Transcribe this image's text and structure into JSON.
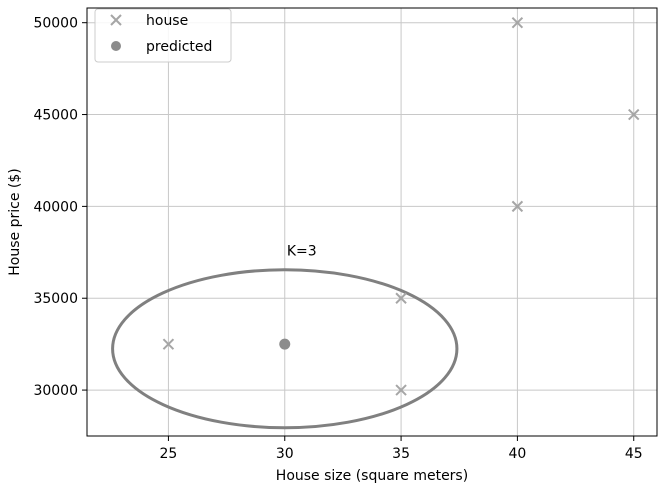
{
  "chart_data": {
    "type": "scatter",
    "title": "",
    "xlabel": "House size (square meters)",
    "ylabel": "House price ($)",
    "xlim": [
      21.5,
      46
    ],
    "ylim": [
      27500,
      50800
    ],
    "xticks": [
      25,
      30,
      35,
      40,
      45
    ],
    "yticks": [
      30000,
      35000,
      40000,
      45000,
      50000
    ],
    "grid": true,
    "legend_position": "top-left",
    "series": [
      {
        "name": "house",
        "marker": "x",
        "color": "#a6a6a6",
        "points": [
          {
            "x": 25,
            "y": 32500
          },
          {
            "x": 35,
            "y": 35000
          },
          {
            "x": 35,
            "y": 30000
          },
          {
            "x": 40,
            "y": 50000
          },
          {
            "x": 40,
            "y": 40000
          },
          {
            "x": 45,
            "y": 45000
          }
        ]
      },
      {
        "name": "predicted",
        "marker": "circle",
        "color": "#8c8c8c",
        "points": [
          {
            "x": 30,
            "y": 32500
          }
        ]
      }
    ],
    "annotations": [
      {
        "text": "K=3",
        "x": 30,
        "y": 37500
      }
    ],
    "ellipse": {
      "cx": 30,
      "cy": 32250,
      "rx": 7.4,
      "ry": 4300,
      "color": "#808080"
    }
  }
}
